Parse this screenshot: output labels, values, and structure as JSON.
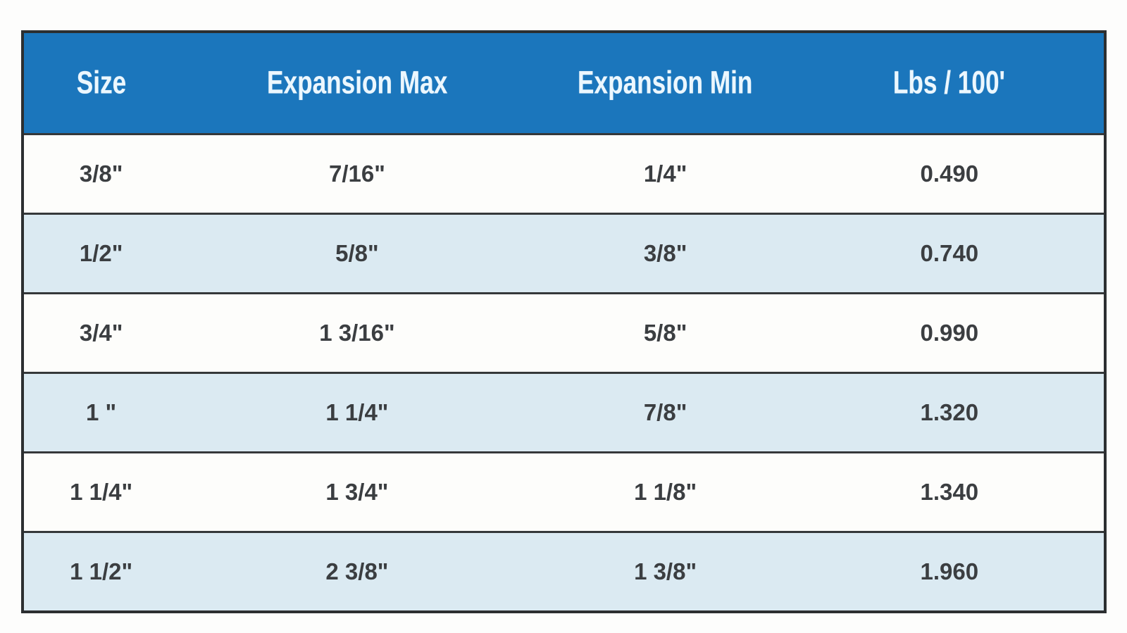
{
  "table": {
    "columns": [
      "Size",
      "Expansion Max",
      "Expansion Min",
      "Lbs / 100'"
    ],
    "rows": [
      {
        "cells": [
          "3/8\"",
          "7/16\"",
          "1/4\"",
          "0.490"
        ]
      },
      {
        "cells": [
          "1/2\"",
          "5/8\"",
          "3/8\"",
          "0.740"
        ]
      },
      {
        "cells": [
          "3/4\"",
          "1 3/16\"",
          "5/8\"",
          "0.990"
        ]
      },
      {
        "cells": [
          "1 \"",
          "1 1/4\"",
          "7/8\"",
          "1.320"
        ]
      },
      {
        "cells": [
          "1 1/4\"",
          "1 3/4\"",
          "1 1/8\"",
          "1.340"
        ]
      },
      {
        "cells": [
          "1 1/2\"",
          "2 3/8\"",
          "1 3/8\"",
          "1.960"
        ]
      }
    ]
  },
  "colors": {
    "header_bg": "#1b76bc",
    "header_text": "#ecf7fe",
    "row_bg": "#fdfdfb",
    "row_alt_bg": "#dbeaf2",
    "border": "#2c2f31",
    "cell_text": "#3b3e41"
  },
  "chart_data": {
    "type": "table",
    "title": "",
    "columns": [
      "Size",
      "Expansion Max",
      "Expansion Min",
      "Lbs / 100'"
    ],
    "rows": [
      [
        "3/8\"",
        "7/16\"",
        "1/4\"",
        "0.490"
      ],
      [
        "1/2\"",
        "5/8\"",
        "3/8\"",
        "0.740"
      ],
      [
        "3/4\"",
        "1 3/16\"",
        "5/8\"",
        "0.990"
      ],
      [
        "1 \"",
        "1 1/4\"",
        "7/8\"",
        "1.320"
      ],
      [
        "1 1/4\"",
        "1 3/4\"",
        "1 1/8\"",
        "1.340"
      ],
      [
        "1 1/2\"",
        "2 3/8\"",
        "1 3/8\"",
        "1.960"
      ]
    ],
    "lbs_per_100ft_values": [
      0.49,
      0.74,
      0.99,
      1.32,
      1.34,
      1.96
    ]
  }
}
